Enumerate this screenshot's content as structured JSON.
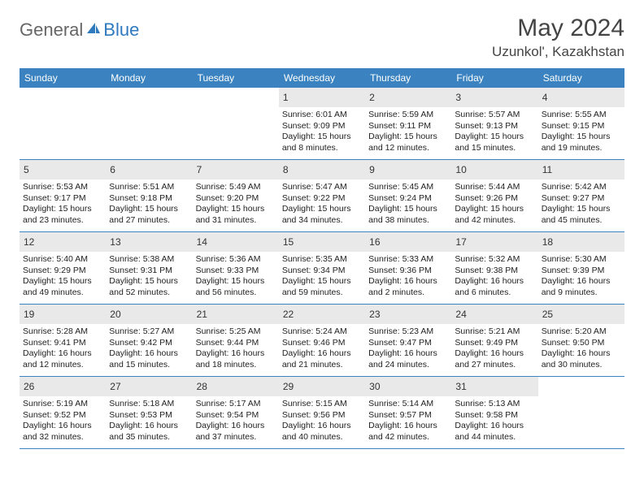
{
  "logo": {
    "general": "General",
    "blue": "Blue"
  },
  "title": {
    "month_year": "May 2024",
    "location": "Uzunkol', Kazakhstan"
  },
  "weekdays": [
    "Sunday",
    "Monday",
    "Tuesday",
    "Wednesday",
    "Thursday",
    "Friday",
    "Saturday"
  ],
  "colors": {
    "header_bg": "#3b83c0",
    "daynum_bg": "#e9e9e9",
    "logo_gray": "#666666",
    "logo_blue": "#2f7abf",
    "text": "#222222"
  },
  "weeks": [
    [
      null,
      null,
      null,
      {
        "n": "1",
        "sunrise": "Sunrise: 6:01 AM",
        "sunset": "Sunset: 9:09 PM",
        "day1": "Daylight: 15 hours",
        "day2": "and 8 minutes."
      },
      {
        "n": "2",
        "sunrise": "Sunrise: 5:59 AM",
        "sunset": "Sunset: 9:11 PM",
        "day1": "Daylight: 15 hours",
        "day2": "and 12 minutes."
      },
      {
        "n": "3",
        "sunrise": "Sunrise: 5:57 AM",
        "sunset": "Sunset: 9:13 PM",
        "day1": "Daylight: 15 hours",
        "day2": "and 15 minutes."
      },
      {
        "n": "4",
        "sunrise": "Sunrise: 5:55 AM",
        "sunset": "Sunset: 9:15 PM",
        "day1": "Daylight: 15 hours",
        "day2": "and 19 minutes."
      }
    ],
    [
      {
        "n": "5",
        "sunrise": "Sunrise: 5:53 AM",
        "sunset": "Sunset: 9:17 PM",
        "day1": "Daylight: 15 hours",
        "day2": "and 23 minutes."
      },
      {
        "n": "6",
        "sunrise": "Sunrise: 5:51 AM",
        "sunset": "Sunset: 9:18 PM",
        "day1": "Daylight: 15 hours",
        "day2": "and 27 minutes."
      },
      {
        "n": "7",
        "sunrise": "Sunrise: 5:49 AM",
        "sunset": "Sunset: 9:20 PM",
        "day1": "Daylight: 15 hours",
        "day2": "and 31 minutes."
      },
      {
        "n": "8",
        "sunrise": "Sunrise: 5:47 AM",
        "sunset": "Sunset: 9:22 PM",
        "day1": "Daylight: 15 hours",
        "day2": "and 34 minutes."
      },
      {
        "n": "9",
        "sunrise": "Sunrise: 5:45 AM",
        "sunset": "Sunset: 9:24 PM",
        "day1": "Daylight: 15 hours",
        "day2": "and 38 minutes."
      },
      {
        "n": "10",
        "sunrise": "Sunrise: 5:44 AM",
        "sunset": "Sunset: 9:26 PM",
        "day1": "Daylight: 15 hours",
        "day2": "and 42 minutes."
      },
      {
        "n": "11",
        "sunrise": "Sunrise: 5:42 AM",
        "sunset": "Sunset: 9:27 PM",
        "day1": "Daylight: 15 hours",
        "day2": "and 45 minutes."
      }
    ],
    [
      {
        "n": "12",
        "sunrise": "Sunrise: 5:40 AM",
        "sunset": "Sunset: 9:29 PM",
        "day1": "Daylight: 15 hours",
        "day2": "and 49 minutes."
      },
      {
        "n": "13",
        "sunrise": "Sunrise: 5:38 AM",
        "sunset": "Sunset: 9:31 PM",
        "day1": "Daylight: 15 hours",
        "day2": "and 52 minutes."
      },
      {
        "n": "14",
        "sunrise": "Sunrise: 5:36 AM",
        "sunset": "Sunset: 9:33 PM",
        "day1": "Daylight: 15 hours",
        "day2": "and 56 minutes."
      },
      {
        "n": "15",
        "sunrise": "Sunrise: 5:35 AM",
        "sunset": "Sunset: 9:34 PM",
        "day1": "Daylight: 15 hours",
        "day2": "and 59 minutes."
      },
      {
        "n": "16",
        "sunrise": "Sunrise: 5:33 AM",
        "sunset": "Sunset: 9:36 PM",
        "day1": "Daylight: 16 hours",
        "day2": "and 2 minutes."
      },
      {
        "n": "17",
        "sunrise": "Sunrise: 5:32 AM",
        "sunset": "Sunset: 9:38 PM",
        "day1": "Daylight: 16 hours",
        "day2": "and 6 minutes."
      },
      {
        "n": "18",
        "sunrise": "Sunrise: 5:30 AM",
        "sunset": "Sunset: 9:39 PM",
        "day1": "Daylight: 16 hours",
        "day2": "and 9 minutes."
      }
    ],
    [
      {
        "n": "19",
        "sunrise": "Sunrise: 5:28 AM",
        "sunset": "Sunset: 9:41 PM",
        "day1": "Daylight: 16 hours",
        "day2": "and 12 minutes."
      },
      {
        "n": "20",
        "sunrise": "Sunrise: 5:27 AM",
        "sunset": "Sunset: 9:42 PM",
        "day1": "Daylight: 16 hours",
        "day2": "and 15 minutes."
      },
      {
        "n": "21",
        "sunrise": "Sunrise: 5:25 AM",
        "sunset": "Sunset: 9:44 PM",
        "day1": "Daylight: 16 hours",
        "day2": "and 18 minutes."
      },
      {
        "n": "22",
        "sunrise": "Sunrise: 5:24 AM",
        "sunset": "Sunset: 9:46 PM",
        "day1": "Daylight: 16 hours",
        "day2": "and 21 minutes."
      },
      {
        "n": "23",
        "sunrise": "Sunrise: 5:23 AM",
        "sunset": "Sunset: 9:47 PM",
        "day1": "Daylight: 16 hours",
        "day2": "and 24 minutes."
      },
      {
        "n": "24",
        "sunrise": "Sunrise: 5:21 AM",
        "sunset": "Sunset: 9:49 PM",
        "day1": "Daylight: 16 hours",
        "day2": "and 27 minutes."
      },
      {
        "n": "25",
        "sunrise": "Sunrise: 5:20 AM",
        "sunset": "Sunset: 9:50 PM",
        "day1": "Daylight: 16 hours",
        "day2": "and 30 minutes."
      }
    ],
    [
      {
        "n": "26",
        "sunrise": "Sunrise: 5:19 AM",
        "sunset": "Sunset: 9:52 PM",
        "day1": "Daylight: 16 hours",
        "day2": "and 32 minutes."
      },
      {
        "n": "27",
        "sunrise": "Sunrise: 5:18 AM",
        "sunset": "Sunset: 9:53 PM",
        "day1": "Daylight: 16 hours",
        "day2": "and 35 minutes."
      },
      {
        "n": "28",
        "sunrise": "Sunrise: 5:17 AM",
        "sunset": "Sunset: 9:54 PM",
        "day1": "Daylight: 16 hours",
        "day2": "and 37 minutes."
      },
      {
        "n": "29",
        "sunrise": "Sunrise: 5:15 AM",
        "sunset": "Sunset: 9:56 PM",
        "day1": "Daylight: 16 hours",
        "day2": "and 40 minutes."
      },
      {
        "n": "30",
        "sunrise": "Sunrise: 5:14 AM",
        "sunset": "Sunset: 9:57 PM",
        "day1": "Daylight: 16 hours",
        "day2": "and 42 minutes."
      },
      {
        "n": "31",
        "sunrise": "Sunrise: 5:13 AM",
        "sunset": "Sunset: 9:58 PM",
        "day1": "Daylight: 16 hours",
        "day2": "and 44 minutes."
      },
      null
    ]
  ]
}
